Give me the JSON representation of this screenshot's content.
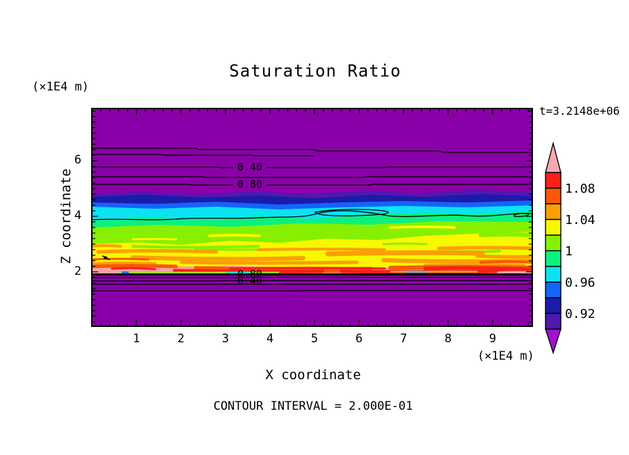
{
  "title": "Saturation Ratio",
  "time_annotation": "t=3.2148e+06",
  "footer": "CONTOUR INTERVAL = 2.000E-01",
  "axes": {
    "x": {
      "label": "X coordinate",
      "units": "(×1E4 m)",
      "ticks": [
        "1",
        "2",
        "3",
        "4",
        "5",
        "6",
        "7",
        "8",
        "9"
      ],
      "tick_values": [
        1,
        2,
        3,
        4,
        5,
        6,
        7,
        8,
        9
      ],
      "range": [
        0,
        9.92
      ],
      "minor_tick_step": 0.2
    },
    "y": {
      "label": "Z coordinate",
      "units": "(×1E4 m)",
      "ticks": [
        "2",
        "4",
        "6"
      ],
      "tick_values": [
        2,
        4,
        6
      ],
      "range": [
        0,
        7.9
      ],
      "minor_tick_step": 0.2
    }
  },
  "contour_labels": {
    "upper_040": "0.40",
    "upper_080": "0.80",
    "lower_080": "0.80",
    "lower_040": "0.40"
  },
  "palette": {
    "plot_purple": "#8A00A8",
    "violet": "#5018B0",
    "navy": "#1B1BAA",
    "blue": "#1464F8",
    "cyan": "#0CE2F0",
    "spring_green": "#0CF080",
    "chartreuse": "#86F000",
    "yellow": "#F8F800",
    "orange": "#FAA005",
    "orange_red": "#FA5805",
    "red": "#F82019",
    "salmon": "#F8A2AC",
    "pink_over": "#F8A8B2",
    "purple_under": "#A012D0",
    "contour_line": "#000000"
  },
  "colorbar": {
    "value_top": 1.1,
    "value_step": 0.02,
    "labels": [
      {
        "text": "1.08",
        "value": 1.08
      },
      {
        "text": "1.04",
        "value": 1.04
      },
      {
        "text": "1",
        "value": 1.0
      },
      {
        "text": "0.96",
        "value": 0.96
      },
      {
        "text": "0.92",
        "value": 0.92
      }
    ],
    "segments": [
      {
        "color": "#F82019",
        "range": [
          1.08,
          1.1
        ]
      },
      {
        "color": "#FA5805",
        "range": [
          1.06,
          1.08
        ]
      },
      {
        "color": "#FAA005",
        "range": [
          1.04,
          1.06
        ]
      },
      {
        "color": "#F8F800",
        "range": [
          1.02,
          1.04
        ]
      },
      {
        "color": "#86F000",
        "range": [
          1.0,
          1.02
        ]
      },
      {
        "color": "#0CF080",
        "range": [
          0.98,
          1.0
        ]
      },
      {
        "color": "#0CE2F0",
        "range": [
          0.96,
          0.98
        ]
      },
      {
        "color": "#1464F8",
        "range": [
          0.94,
          0.96
        ]
      },
      {
        "color": "#1B1BAA",
        "range": [
          0.92,
          0.94
        ]
      },
      {
        "color": "#5018B0",
        "range": [
          0.9,
          0.92
        ]
      }
    ],
    "over_arrow": {
      "color": "#F8A8B2",
      "meaning": "> 1.10"
    },
    "under_arrow": {
      "color": "#A012D0",
      "meaning": "< 0.90"
    }
  },
  "chart_data": {
    "type": "heatmap",
    "title": "Saturation Ratio",
    "xlabel": "X coordinate",
    "ylabel": "Z coordinate",
    "axis_units": "(×1E4 m)",
    "xlim": [
      0,
      9.92
    ],
    "ylim": [
      0,
      7.9
    ],
    "time": "t=3.2148e+06",
    "contour_interval": 0.2,
    "colorbar_ticks": [
      1.08,
      1.04,
      1,
      0.96,
      0.92
    ],
    "colorbar_range": [
      0.9,
      1.1
    ],
    "labeled_contours": [
      {
        "value": 0.4,
        "z": 5.7,
        "region": "upper"
      },
      {
        "value": 0.8,
        "z": 5.1,
        "region": "upper"
      },
      {
        "value": 0.8,
        "z": 1.95,
        "region": "lower"
      },
      {
        "value": 0.4,
        "z": 1.7,
        "region": "lower"
      }
    ],
    "saturation_profile": [
      {
        "z": 7.9,
        "S": 0.0
      },
      {
        "z": 6.2,
        "S": 0.2
      },
      {
        "z": 5.7,
        "S": 0.4
      },
      {
        "z": 5.3,
        "S": 0.6
      },
      {
        "z": 5.1,
        "S": 0.8
      },
      {
        "z": 4.75,
        "S": 0.9
      },
      {
        "z": 4.55,
        "S": 0.93
      },
      {
        "z": 4.35,
        "S": 0.95
      },
      {
        "z": 4.15,
        "S": 0.97
      },
      {
        "z": 3.95,
        "S": 1.0
      },
      {
        "z": 3.55,
        "S": 1.02
      },
      {
        "z": 2.9,
        "S": 1.04
      },
      {
        "z": 2.4,
        "S": 1.06
      },
      {
        "z": 2.15,
        "S": 1.08
      },
      {
        "z": 2.0,
        "S": 1.1
      },
      {
        "z": 1.95,
        "S": 0.8
      },
      {
        "z": 1.7,
        "S": 0.4
      },
      {
        "z": 1.45,
        "S": 0.2
      },
      {
        "z": 0.5,
        "S": 0.0
      }
    ],
    "description": "Horizontally banded saturation-ratio field: unsaturated (purple, S<0.9) above z≈4.8 and below z≈1.95; supersaturated yellow/orange/red streaky layer between z≈2 and z≈3.9 peaking near S≈1.10 at z≈2."
  }
}
